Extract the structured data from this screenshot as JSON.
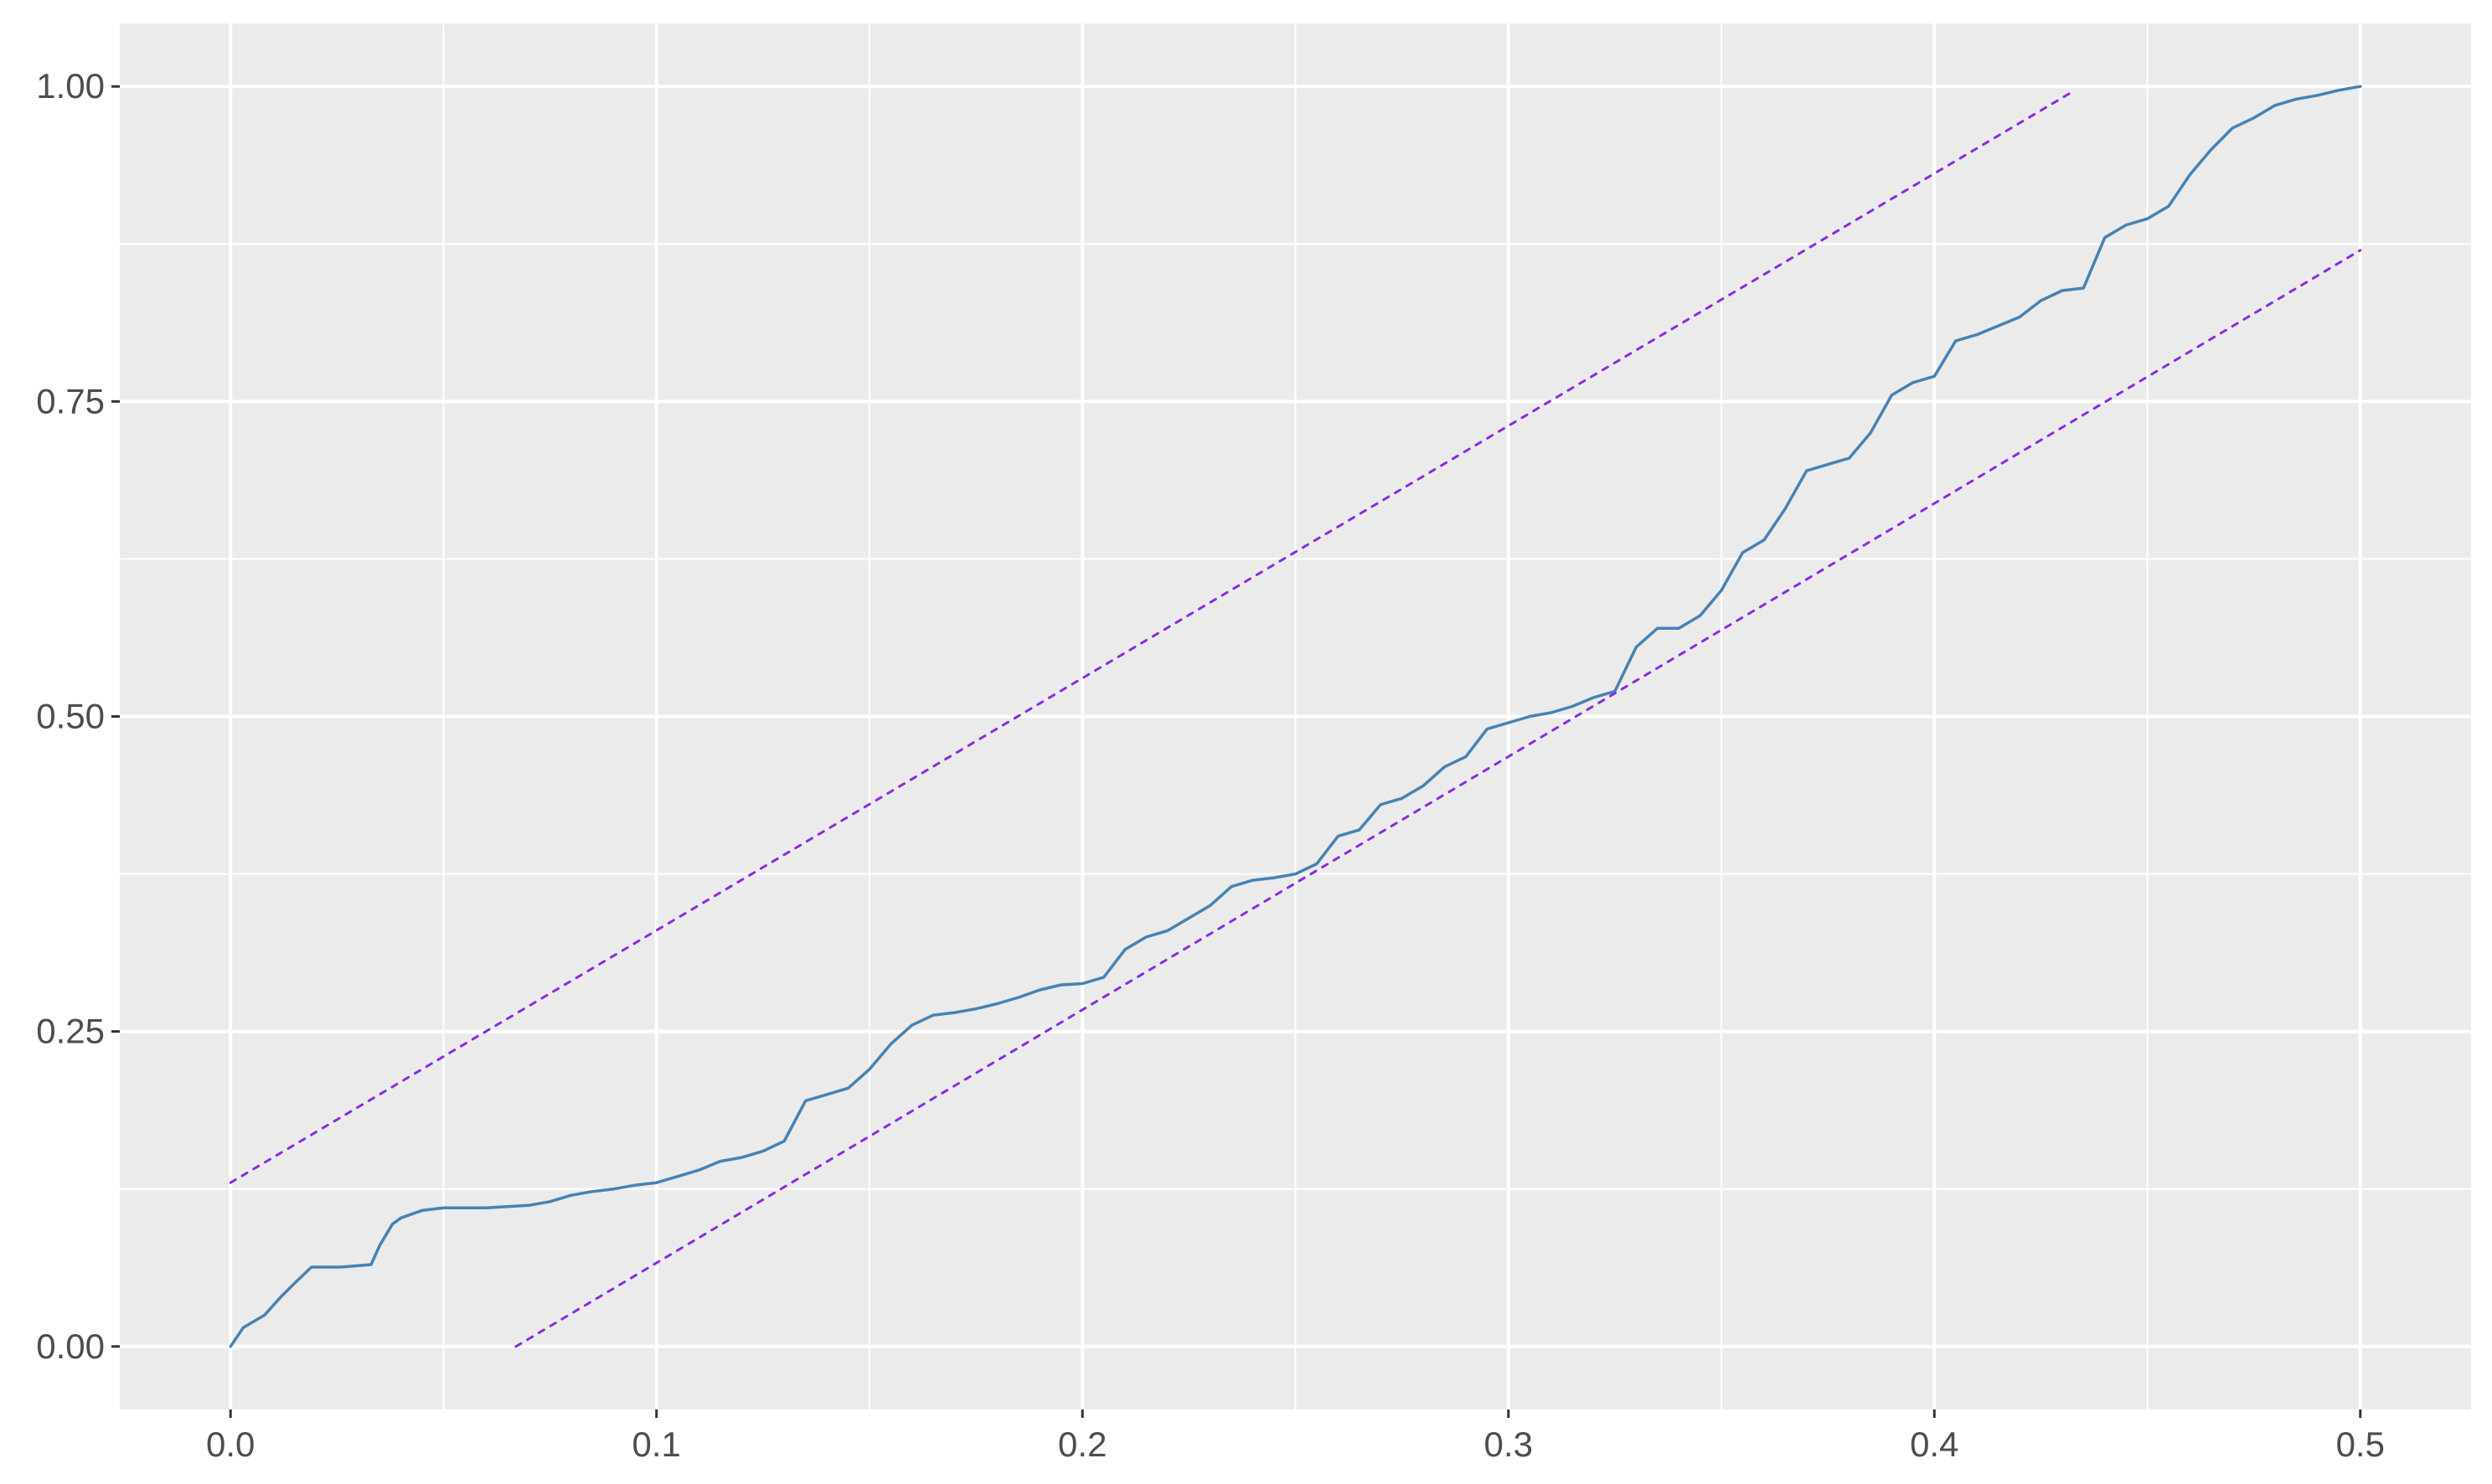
{
  "chart_data": {
    "type": "line",
    "title": "",
    "xlabel": "",
    "ylabel": "",
    "xlim": [
      -0.026,
      0.526
    ],
    "ylim": [
      -0.05,
      1.05
    ],
    "grid": true,
    "x_ticks": [
      0.0,
      0.1,
      0.2,
      0.3,
      0.4,
      0.5
    ],
    "x_tick_labels": [
      "0.0",
      "0.1",
      "0.2",
      "0.3",
      "0.4",
      "0.5"
    ],
    "y_ticks": [
      0.0,
      0.25,
      0.5,
      0.75,
      1.0
    ],
    "y_tick_labels": [
      "0.00",
      "0.25",
      "0.50",
      "0.75",
      "1.00"
    ],
    "colors": {
      "panel_background": "#ebebeb",
      "grid_major": "#ffffff",
      "tick_text": "#4d4d4d",
      "ecdf_line": "#4682b4",
      "band_line": "#8a2be2"
    },
    "series": [
      {
        "style": "solid",
        "color": "#4682b4",
        "x": [
          0.0,
          0.003,
          0.008,
          0.012,
          0.015,
          0.019,
          0.026,
          0.033,
          0.035,
          0.038,
          0.04,
          0.045,
          0.05,
          0.06,
          0.07,
          0.075,
          0.08,
          0.085,
          0.09,
          0.095,
          0.1,
          0.105,
          0.11,
          0.115,
          0.12,
          0.125,
          0.13,
          0.135,
          0.14,
          0.145,
          0.15,
          0.155,
          0.16,
          0.165,
          0.17,
          0.175,
          0.18,
          0.185,
          0.19,
          0.195,
          0.2,
          0.205,
          0.21,
          0.215,
          0.22,
          0.225,
          0.23,
          0.235,
          0.24,
          0.245,
          0.25,
          0.255,
          0.26,
          0.265,
          0.27,
          0.275,
          0.28,
          0.285,
          0.29,
          0.295,
          0.3,
          0.305,
          0.31,
          0.315,
          0.32,
          0.325,
          0.33,
          0.335,
          0.34,
          0.345,
          0.35,
          0.355,
          0.36,
          0.365,
          0.37,
          0.375,
          0.38,
          0.385,
          0.39,
          0.395,
          0.4,
          0.405,
          0.41,
          0.415,
          0.42,
          0.425,
          0.43,
          0.435,
          0.44,
          0.445,
          0.45,
          0.455,
          0.46,
          0.465,
          0.47,
          0.475,
          0.48,
          0.485,
          0.49,
          0.495,
          0.5
        ],
        "y": [
          0.0,
          0.015,
          0.025,
          0.04,
          0.05,
          0.063,
          0.063,
          0.065,
          0.08,
          0.097,
          0.102,
          0.108,
          0.11,
          0.11,
          0.112,
          0.115,
          0.12,
          0.123,
          0.125,
          0.128,
          0.13,
          0.135,
          0.14,
          0.147,
          0.15,
          0.155,
          0.163,
          0.195,
          0.2,
          0.205,
          0.22,
          0.24,
          0.255,
          0.263,
          0.265,
          0.268,
          0.272,
          0.277,
          0.283,
          0.287,
          0.288,
          0.293,
          0.315,
          0.325,
          0.33,
          0.34,
          0.35,
          0.365,
          0.37,
          0.372,
          0.375,
          0.383,
          0.405,
          0.41,
          0.43,
          0.435,
          0.445,
          0.46,
          0.468,
          0.49,
          0.495,
          0.5,
          0.503,
          0.508,
          0.515,
          0.52,
          0.555,
          0.57,
          0.57,
          0.58,
          0.6,
          0.63,
          0.64,
          0.665,
          0.695,
          0.7,
          0.705,
          0.725,
          0.755,
          0.765,
          0.77,
          0.798,
          0.803,
          0.81,
          0.817,
          0.83,
          0.838,
          0.84,
          0.88,
          0.89,
          0.895,
          0.905,
          0.93,
          0.95,
          0.967,
          0.975,
          0.985,
          0.99,
          0.993,
          0.997,
          1.0
        ]
      },
      {
        "style": "dashed",
        "color": "#8a2be2",
        "x": [
          0.0,
          0.432
        ],
        "y": [
          0.13,
          0.995
        ]
      },
      {
        "style": "dashed",
        "color": "#8a2be2",
        "x": [
          0.067,
          0.5
        ],
        "y": [
          0.0,
          0.87
        ]
      }
    ]
  }
}
